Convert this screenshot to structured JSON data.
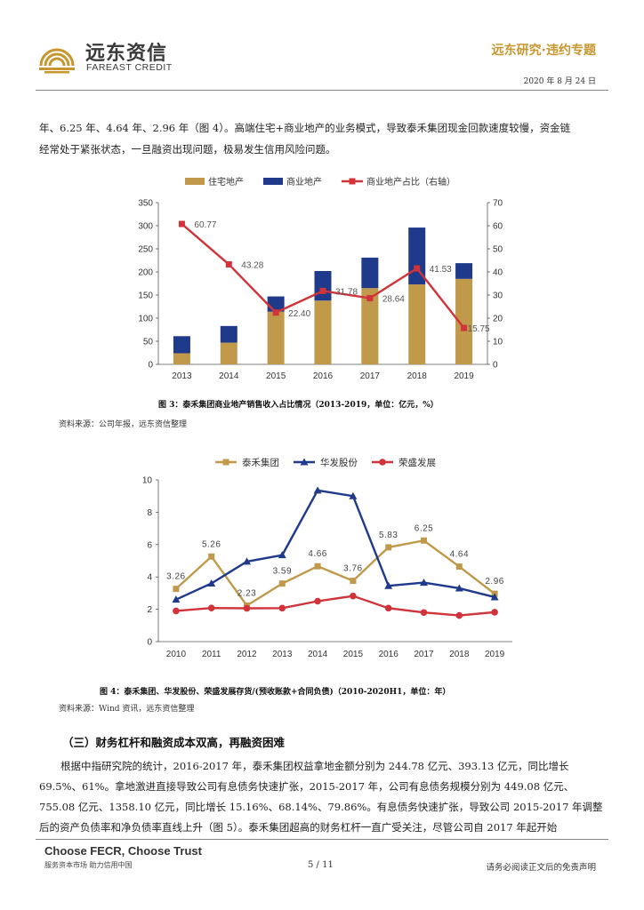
{
  "header": {
    "logo_cn": "远东资信",
    "logo_en": "FAREAST CREDIT",
    "section": "远东研究·违约专题",
    "date": "2020 年 8 月 24 日"
  },
  "intro_paragraph": {
    "line1": "年、6.25 年、4.64 年、2.96 年（图 4）。高端住宅+商业地产的业务模式，导致泰禾集团现金回款速度较慢，资金链",
    "line2": "经常处于紧张状态，一旦融资出现问题，极易发生信用风险问题。"
  },
  "figure3": {
    "caption": "图 3：泰禾集团商业地产销售收入占比情况（2013-2019，单位：亿元，%）",
    "source": "资料来源：公司年报，远东资信整理"
  },
  "figure4": {
    "caption": "图 4：泰禾集团、华发股份、荣盛发展存货/(预收账款+合同负债)（2010-2020H1，单位：年）",
    "source": "资料来源：Wind 资讯，远东资信整理"
  },
  "chart_data": [
    {
      "type": "bar",
      "stacked": true,
      "categories": [
        "2013",
        "2014",
        "2015",
        "2016",
        "2017",
        "2018",
        "2019"
      ],
      "series": [
        {
          "name": "住宅地产",
          "color": "#c09a4a",
          "values": [
            24,
            47,
            114,
            138,
            165,
            173,
            185
          ]
        },
        {
          "name": "商业地产",
          "color": "#1f3a8a",
          "values": [
            37,
            36,
            33,
            64,
            66,
            123,
            34
          ]
        }
      ],
      "line_series": {
        "name": "商业地产占比（右轴）",
        "color": "#d0343a",
        "values": [
          60.77,
          43.28,
          22.4,
          31.78,
          28.64,
          41.53,
          15.75
        ],
        "labels": [
          "60.77",
          "43.28",
          "22.40",
          "31.78",
          "28.64",
          "41.53",
          "15.75"
        ]
      },
      "y_left": {
        "min": 0,
        "max": 350,
        "ticks": [
          "0",
          "50",
          "100",
          "150",
          "200",
          "250",
          "300",
          "350"
        ]
      },
      "y_right": {
        "min": 0,
        "max": 70,
        "ticks": [
          "0",
          "10",
          "20",
          "30",
          "40",
          "50",
          "60",
          "70"
        ]
      },
      "legend": "top"
    },
    {
      "type": "line",
      "categories": [
        "2010",
        "2011",
        "2012",
        "2013",
        "2014",
        "2015",
        "2016",
        "2017",
        "2018",
        "2019"
      ],
      "series": [
        {
          "name": "泰禾集团",
          "color": "#c09a4a",
          "marker": "square",
          "values": [
            3.26,
            5.26,
            2.23,
            3.59,
            4.66,
            3.76,
            5.83,
            6.25,
            4.64,
            2.96
          ],
          "labels": [
            "3.26",
            "5.26",
            "2.23",
            "3.59",
            "4.66",
            "3.76",
            "5.83",
            "6.25",
            "4.64",
            "2.96"
          ]
        },
        {
          "name": "华发股份",
          "color": "#1f3a8a",
          "marker": "triangle",
          "values": [
            2.6,
            3.6,
            4.95,
            5.35,
            9.35,
            9.0,
            3.45,
            3.65,
            3.3,
            2.75
          ]
        },
        {
          "name": "荣盛发展",
          "color": "#d0343a",
          "marker": "circle",
          "values": [
            1.9,
            2.08,
            2.06,
            2.07,
            2.5,
            2.82,
            2.07,
            1.8,
            1.62,
            1.82
          ]
        }
      ],
      "ylim": [
        0,
        10
      ],
      "y_ticks": [
        "0",
        "2",
        "4",
        "6",
        "8",
        "10"
      ],
      "legend": "top"
    }
  ],
  "section3": {
    "title": "（三）财务杠杆和融资成本双高，再融资困难",
    "line1": "根据中指研究院的统计，2016-2017 年，泰禾集团权益拿地金额分别为 244.78 亿元、393.13 亿元，同比增长",
    "line2": "69.5%、61%。拿地激进直接导致公司有息债务快速扩张，2015-2017 年，公司有息债务规模分别为 449.08 亿元、",
    "line3": "755.08 亿元、1358.10 亿元，同比增长 15.16%、68.14%、79.86%。有息债务快速扩张，导致公司 2015-2017 年调整",
    "line4": "后的资产负债率和净负债率直线上升（图 5）。泰禾集团超高的财务杠杆一直广受关注，尽管公司自 2017 年起开始"
  },
  "footer": {
    "brand": "Choose FECR, Choose Trust",
    "slogan": "服务资本市场  助力信用中国",
    "page": "5 / 11",
    "disclaimer": "请务必阅读正文后的免责声明"
  }
}
